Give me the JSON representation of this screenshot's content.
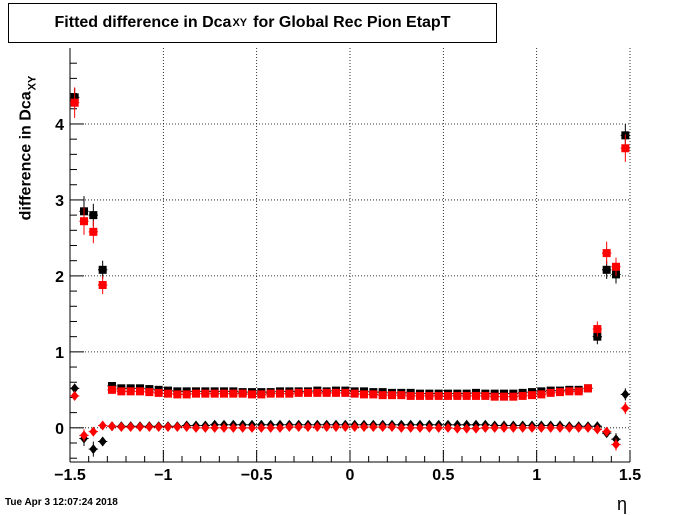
{
  "title": {
    "main": "Fitted difference in Dca",
    "sub": "XY",
    "rest": "for Global Rec Pion EtapT"
  },
  "timestamp": "Tue Apr  3 12:07:24 2018",
  "chart_data": {
    "type": "scatter",
    "title": "Fitted difference in Dca_XY for Global Rec Pion EtapT",
    "xlabel": "η",
    "ylabel": {
      "main": "difference in Dca",
      "sub": "XY"
    },
    "xlim": [
      -1.5,
      1.5
    ],
    "ylim": [
      -0.45,
      5.0
    ],
    "xticks": [
      -1.5,
      -1,
      -0.5,
      0,
      0.5,
      1,
      1.5
    ],
    "xtick_labels": [
      "−1.5",
      "−1",
      "−0.5",
      "0",
      "0.5",
      "1",
      "1.5"
    ],
    "yticks": [
      0,
      1,
      2,
      3,
      4
    ],
    "ytick_labels": [
      "0",
      "1",
      "2",
      "3",
      "4"
    ],
    "grid": true,
    "series": [
      {
        "marker": "square",
        "color": "#000000",
        "x": [
          -1.475,
          -1.425,
          -1.375,
          -1.325,
          -1.275,
          -1.225,
          -1.175,
          -1.125,
          -1.075,
          -1.025,
          -0.975,
          -0.925,
          -0.875,
          -0.825,
          -0.775,
          -0.725,
          -0.675,
          -0.625,
          -0.575,
          -0.525,
          -0.475,
          -0.425,
          -0.375,
          -0.325,
          -0.275,
          -0.225,
          -0.175,
          -0.125,
          -0.075,
          -0.025,
          0.025,
          0.075,
          0.125,
          0.175,
          0.225,
          0.275,
          0.325,
          0.375,
          0.425,
          0.475,
          0.525,
          0.575,
          0.625,
          0.675,
          0.725,
          0.775,
          0.825,
          0.875,
          0.925,
          0.975,
          1.025,
          1.075,
          1.125,
          1.175,
          1.225,
          1.275,
          1.325,
          1.375,
          1.425,
          1.475
        ],
        "y": [
          4.35,
          2.85,
          2.8,
          2.08,
          0.55,
          0.52,
          0.52,
          0.52,
          0.51,
          0.5,
          0.49,
          0.48,
          0.48,
          0.48,
          0.48,
          0.48,
          0.48,
          0.48,
          0.47,
          0.47,
          0.47,
          0.47,
          0.48,
          0.48,
          0.48,
          0.48,
          0.49,
          0.48,
          0.49,
          0.49,
          0.48,
          0.48,
          0.47,
          0.47,
          0.46,
          0.46,
          0.46,
          0.45,
          0.45,
          0.45,
          0.45,
          0.45,
          0.45,
          0.46,
          0.45,
          0.45,
          0.45,
          0.45,
          0.46,
          0.47,
          0.48,
          0.49,
          0.49,
          0.5,
          0.5,
          0.52,
          1.2,
          2.08,
          2.02,
          3.85
        ],
        "yerr": [
          0.13,
          0.2,
          0.15,
          0.12,
          0.03,
          0.02,
          0.02,
          0.02,
          0.02,
          0.02,
          0.02,
          0.02,
          0.02,
          0.02,
          0.02,
          0.02,
          0.02,
          0.02,
          0.02,
          0.02,
          0.02,
          0.02,
          0.02,
          0.02,
          0.02,
          0.02,
          0.02,
          0.02,
          0.02,
          0.02,
          0.02,
          0.02,
          0.02,
          0.02,
          0.02,
          0.02,
          0.02,
          0.02,
          0.02,
          0.02,
          0.02,
          0.02,
          0.02,
          0.02,
          0.02,
          0.02,
          0.02,
          0.02,
          0.02,
          0.02,
          0.02,
          0.02,
          0.02,
          0.02,
          0.02,
          0.03,
          0.1,
          0.12,
          0.12,
          0.15
        ]
      },
      {
        "marker": "square",
        "color": "#ff0000",
        "x": [
          -1.475,
          -1.425,
          -1.375,
          -1.325,
          -1.275,
          -1.225,
          -1.175,
          -1.125,
          -1.075,
          -1.025,
          -0.975,
          -0.925,
          -0.875,
          -0.825,
          -0.775,
          -0.725,
          -0.675,
          -0.625,
          -0.575,
          -0.525,
          -0.475,
          -0.425,
          -0.375,
          -0.325,
          -0.275,
          -0.225,
          -0.175,
          -0.125,
          -0.075,
          -0.025,
          0.025,
          0.075,
          0.125,
          0.175,
          0.225,
          0.275,
          0.325,
          0.375,
          0.425,
          0.475,
          0.525,
          0.575,
          0.625,
          0.675,
          0.725,
          0.775,
          0.825,
          0.875,
          0.925,
          0.975,
          1.025,
          1.075,
          1.125,
          1.175,
          1.225,
          1.275,
          1.325,
          1.375,
          1.425,
          1.475
        ],
        "y": [
          4.28,
          2.72,
          2.58,
          1.88,
          0.5,
          0.48,
          0.48,
          0.48,
          0.47,
          0.46,
          0.45,
          0.44,
          0.44,
          0.45,
          0.45,
          0.45,
          0.45,
          0.45,
          0.45,
          0.44,
          0.44,
          0.45,
          0.45,
          0.45,
          0.46,
          0.46,
          0.46,
          0.46,
          0.46,
          0.46,
          0.45,
          0.44,
          0.44,
          0.43,
          0.43,
          0.43,
          0.42,
          0.42,
          0.42,
          0.42,
          0.42,
          0.42,
          0.42,
          0.42,
          0.42,
          0.41,
          0.41,
          0.41,
          0.42,
          0.43,
          0.44,
          0.46,
          0.47,
          0.48,
          0.48,
          0.52,
          1.3,
          2.3,
          2.12,
          3.68
        ],
        "yerr": [
          0.2,
          0.18,
          0.15,
          0.12,
          0.03,
          0.02,
          0.02,
          0.02,
          0.02,
          0.02,
          0.02,
          0.02,
          0.02,
          0.02,
          0.02,
          0.02,
          0.02,
          0.02,
          0.02,
          0.02,
          0.02,
          0.02,
          0.02,
          0.02,
          0.02,
          0.02,
          0.02,
          0.02,
          0.02,
          0.02,
          0.02,
          0.02,
          0.02,
          0.02,
          0.02,
          0.02,
          0.02,
          0.02,
          0.02,
          0.02,
          0.02,
          0.02,
          0.02,
          0.02,
          0.02,
          0.02,
          0.02,
          0.02,
          0.02,
          0.02,
          0.02,
          0.02,
          0.02,
          0.02,
          0.02,
          0.03,
          0.1,
          0.15,
          0.12,
          0.18
        ]
      },
      {
        "marker": "diamond",
        "color": "#000000",
        "x": [
          -1.475,
          -1.425,
          -1.375,
          -1.325,
          -1.275,
          -1.225,
          -1.175,
          -1.125,
          -1.075,
          -1.025,
          -0.975,
          -0.925,
          -0.875,
          -0.825,
          -0.775,
          -0.725,
          -0.675,
          -0.625,
          -0.575,
          -0.525,
          -0.475,
          -0.425,
          -0.375,
          -0.325,
          -0.275,
          -0.225,
          -0.175,
          -0.125,
          -0.075,
          -0.025,
          0.025,
          0.075,
          0.125,
          0.175,
          0.225,
          0.275,
          0.325,
          0.375,
          0.425,
          0.475,
          0.525,
          0.575,
          0.625,
          0.675,
          0.725,
          0.775,
          0.825,
          0.875,
          0.925,
          0.975,
          1.025,
          1.075,
          1.125,
          1.175,
          1.225,
          1.275,
          1.325,
          1.375,
          1.425,
          1.475
        ],
        "y": [
          0.52,
          -0.14,
          -0.28,
          -0.18,
          0.02,
          0.02,
          0.02,
          0.02,
          0.02,
          0.02,
          0.02,
          0.02,
          0.03,
          0.03,
          0.03,
          0.04,
          0.04,
          0.04,
          0.04,
          0.04,
          0.04,
          0.04,
          0.04,
          0.04,
          0.04,
          0.04,
          0.04,
          0.04,
          0.04,
          0.04,
          0.04,
          0.04,
          0.04,
          0.04,
          0.04,
          0.04,
          0.04,
          0.04,
          0.04,
          0.04,
          0.04,
          0.04,
          0.04,
          0.04,
          0.04,
          0.03,
          0.03,
          0.03,
          0.03,
          0.03,
          0.03,
          0.03,
          0.03,
          0.02,
          0.02,
          0.02,
          0.02,
          -0.07,
          -0.15,
          0.44
        ],
        "yerr": [
          0.06,
          0.1,
          0.1,
          0.06,
          0.01,
          0.01,
          0.01,
          0.01,
          0.01,
          0.01,
          0.01,
          0.01,
          0.01,
          0.01,
          0.01,
          0.01,
          0.01,
          0.01,
          0.01,
          0.01,
          0.01,
          0.01,
          0.01,
          0.01,
          0.01,
          0.01,
          0.01,
          0.01,
          0.01,
          0.01,
          0.01,
          0.01,
          0.01,
          0.01,
          0.01,
          0.01,
          0.01,
          0.01,
          0.01,
          0.01,
          0.01,
          0.01,
          0.01,
          0.01,
          0.01,
          0.01,
          0.01,
          0.01,
          0.01,
          0.01,
          0.01,
          0.01,
          0.01,
          0.01,
          0.01,
          0.01,
          0.02,
          0.05,
          0.08,
          0.08
        ]
      },
      {
        "marker": "diamond",
        "color": "#ff0000",
        "x": [
          -1.475,
          -1.425,
          -1.375,
          -1.325,
          -1.275,
          -1.225,
          -1.175,
          -1.125,
          -1.075,
          -1.025,
          -0.975,
          -0.925,
          -0.875,
          -0.825,
          -0.775,
          -0.725,
          -0.675,
          -0.625,
          -0.575,
          -0.525,
          -0.475,
          -0.425,
          -0.375,
          -0.325,
          -0.275,
          -0.225,
          -0.175,
          -0.125,
          -0.075,
          -0.025,
          0.025,
          0.075,
          0.125,
          0.175,
          0.225,
          0.275,
          0.325,
          0.375,
          0.425,
          0.475,
          0.525,
          0.575,
          0.625,
          0.675,
          0.725,
          0.775,
          0.825,
          0.875,
          0.925,
          0.975,
          1.025,
          1.075,
          1.125,
          1.175,
          1.225,
          1.275,
          1.325,
          1.375,
          1.425,
          1.475
        ],
        "y": [
          0.42,
          -0.1,
          -0.05,
          0.03,
          0.02,
          0.01,
          0.01,
          0.01,
          0.01,
          0.01,
          0.01,
          0.01,
          0.01,
          0.0,
          0.0,
          0.0,
          0.0,
          0.0,
          0.0,
          0.0,
          0.0,
          0.0,
          0.0,
          0.01,
          0.01,
          0.01,
          0.01,
          0.01,
          0.01,
          0.01,
          0.01,
          0.01,
          0.01,
          0.01,
          0.01,
          0.0,
          0.0,
          0.0,
          0.0,
          0.0,
          0.0,
          -0.01,
          -0.01,
          -0.01,
          0.0,
          0.0,
          0.0,
          0.0,
          0.0,
          0.0,
          0.0,
          0.0,
          0.0,
          0.0,
          0.0,
          0.0,
          -0.02,
          -0.05,
          -0.22,
          0.26
        ],
        "yerr": [
          0.06,
          0.08,
          0.06,
          0.04,
          0.01,
          0.01,
          0.01,
          0.01,
          0.01,
          0.01,
          0.01,
          0.01,
          0.01,
          0.01,
          0.01,
          0.01,
          0.01,
          0.01,
          0.01,
          0.01,
          0.01,
          0.01,
          0.01,
          0.01,
          0.01,
          0.01,
          0.01,
          0.01,
          0.01,
          0.01,
          0.01,
          0.01,
          0.01,
          0.01,
          0.01,
          0.01,
          0.01,
          0.01,
          0.01,
          0.01,
          0.01,
          0.01,
          0.01,
          0.01,
          0.01,
          0.01,
          0.01,
          0.01,
          0.01,
          0.01,
          0.01,
          0.01,
          0.01,
          0.01,
          0.01,
          0.01,
          0.02,
          0.05,
          0.08,
          0.08
        ]
      }
    ]
  }
}
